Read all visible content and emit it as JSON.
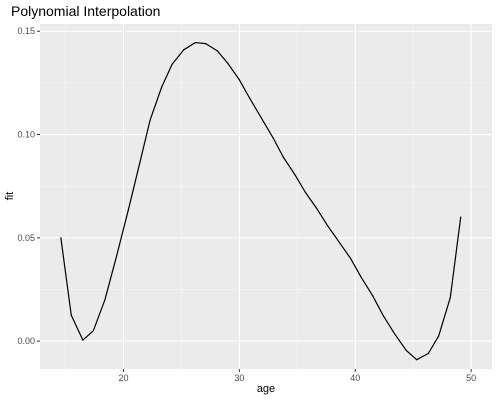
{
  "chart_data": {
    "type": "line",
    "title": "Polynomial Interpolation",
    "xlabel": "age",
    "ylabel": "fit",
    "xlim": [
      12.8,
      51.8
    ],
    "ylim": [
      -0.0135,
      0.1535
    ],
    "x_ticks": [
      20,
      30,
      40,
      50
    ],
    "x_tick_labels": [
      "20",
      "30",
      "40",
      "50"
    ],
    "y_ticks": [
      0.0,
      0.05,
      0.1,
      0.15
    ],
    "y_tick_labels": [
      "0.00",
      "0.05",
      "0.10",
      "0.15"
    ],
    "grid": true,
    "series": [
      {
        "color": "#000000",
        "points": [
          [
            14.6,
            0.05
          ],
          [
            15.5,
            0.0125
          ],
          [
            16.5,
            0.0005
          ],
          [
            17.4,
            0.005
          ],
          [
            18.4,
            0.02
          ],
          [
            19.4,
            0.041
          ],
          [
            20.4,
            0.063
          ],
          [
            21.4,
            0.086
          ],
          [
            22.3,
            0.107
          ],
          [
            23.3,
            0.123
          ],
          [
            24.2,
            0.134
          ],
          [
            25.2,
            0.141
          ],
          [
            26.2,
            0.1445
          ],
          [
            27.1,
            0.144
          ],
          [
            28.1,
            0.1405
          ],
          [
            29.0,
            0.1345
          ],
          [
            30.0,
            0.1265
          ],
          [
            30.9,
            0.1175
          ],
          [
            31.9,
            0.108
          ],
          [
            32.9,
            0.0985
          ],
          [
            33.8,
            0.089
          ],
          [
            34.8,
            0.0805
          ],
          [
            35.7,
            0.072
          ],
          [
            36.7,
            0.064
          ],
          [
            37.6,
            0.056
          ],
          [
            38.6,
            0.048
          ],
          [
            39.6,
            0.04
          ],
          [
            40.5,
            0.031
          ],
          [
            41.5,
            0.022
          ],
          [
            42.4,
            0.0125
          ],
          [
            43.4,
            0.0035
          ],
          [
            44.4,
            -0.0045
          ],
          [
            45.3,
            -0.009
          ],
          [
            46.3,
            -0.006
          ],
          [
            47.2,
            0.0025
          ],
          [
            48.2,
            0.021
          ],
          [
            49.1,
            0.06
          ]
        ]
      }
    ]
  }
}
